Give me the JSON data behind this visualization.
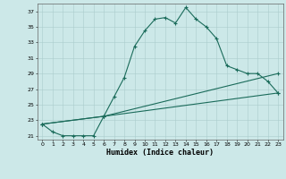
{
  "title": "",
  "xlabel": "Humidex (Indice chaleur)",
  "background_color": "#cce8e8",
  "grid_color": "#aacccc",
  "line_color": "#1a6b5a",
  "xlim": [
    -0.5,
    23.5
  ],
  "ylim": [
    20.5,
    38.0
  ],
  "yticks": [
    21,
    23,
    25,
    27,
    29,
    31,
    33,
    35,
    37
  ],
  "xticks": [
    0,
    1,
    2,
    3,
    4,
    5,
    6,
    7,
    8,
    9,
    10,
    11,
    12,
    13,
    14,
    15,
    16,
    17,
    18,
    19,
    20,
    21,
    22,
    23
  ],
  "curve1_x": [
    0,
    1,
    2,
    3,
    4,
    5,
    6,
    7,
    8,
    9,
    10,
    11,
    12,
    13,
    14,
    15,
    16,
    17,
    18,
    19,
    20,
    21,
    22,
    23
  ],
  "curve1_y": [
    22.5,
    21.5,
    21.0,
    21.0,
    21.0,
    21.0,
    23.5,
    26.0,
    28.5,
    32.5,
    34.5,
    36.0,
    36.2,
    35.5,
    37.5,
    36.0,
    35.0,
    33.5,
    30.0,
    29.5,
    29.0,
    29.0,
    28.0,
    26.5
  ],
  "curve2_x": [
    0,
    6,
    23
  ],
  "curve2_y": [
    22.5,
    23.5,
    26.5
  ],
  "curve3_x": [
    0,
    6,
    23
  ],
  "curve3_y": [
    22.5,
    23.5,
    29.0
  ]
}
